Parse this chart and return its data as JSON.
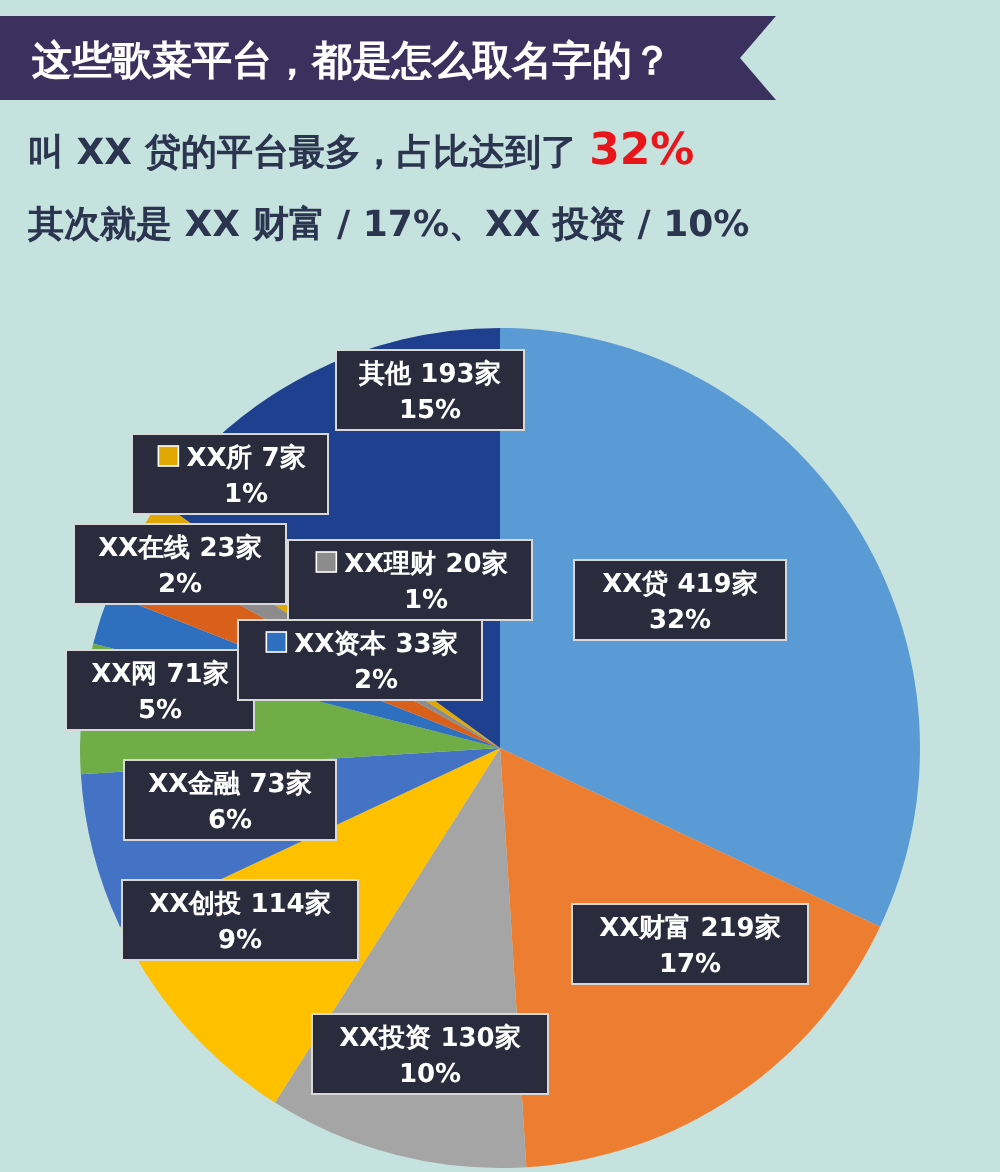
{
  "chart_data": {
    "type": "pie",
    "title": "这些歌菜平台，都是怎么取名字的？",
    "subtitle": "叫 XX 贷的平台最多，占比达到了 **32%**",
    "annotations": [
      "其次就是 XX 财富 / 17%、XX 投资 / 10%"
    ],
    "categories": [
      "XX贷 419家",
      "XX财富 219家",
      "XX投资 130家",
      "XX创投 114家",
      "XX金融 73家",
      "XX网 71家",
      "XX资本 33家",
      "XX在线 23家",
      "XX理财 20家",
      "XX所 7家",
      "其他 193家"
    ],
    "legend": "top left",
    "values": [
      32,
      17,
      10,
      9,
      6,
      5,
      2,
      2,
      1,
      1,
      15
    ],
    "value_labels": [
      "32%",
      "17%",
      "10%",
      "9%",
      "6%",
      "5%",
      "2%",
      "2%",
      "1%",
      "1%",
      "15%"
    ],
    "colors": [
      "#5b9bd5",
      "#ed7d31",
      "#a5a5a5",
      "#ffc000",
      "#4472c4",
      "#70ad47",
      "#2f6fc0",
      "#d9601a",
      "#8c8c8c",
      "#e0a800",
      "#1f3f8f"
    ]
  }
}
